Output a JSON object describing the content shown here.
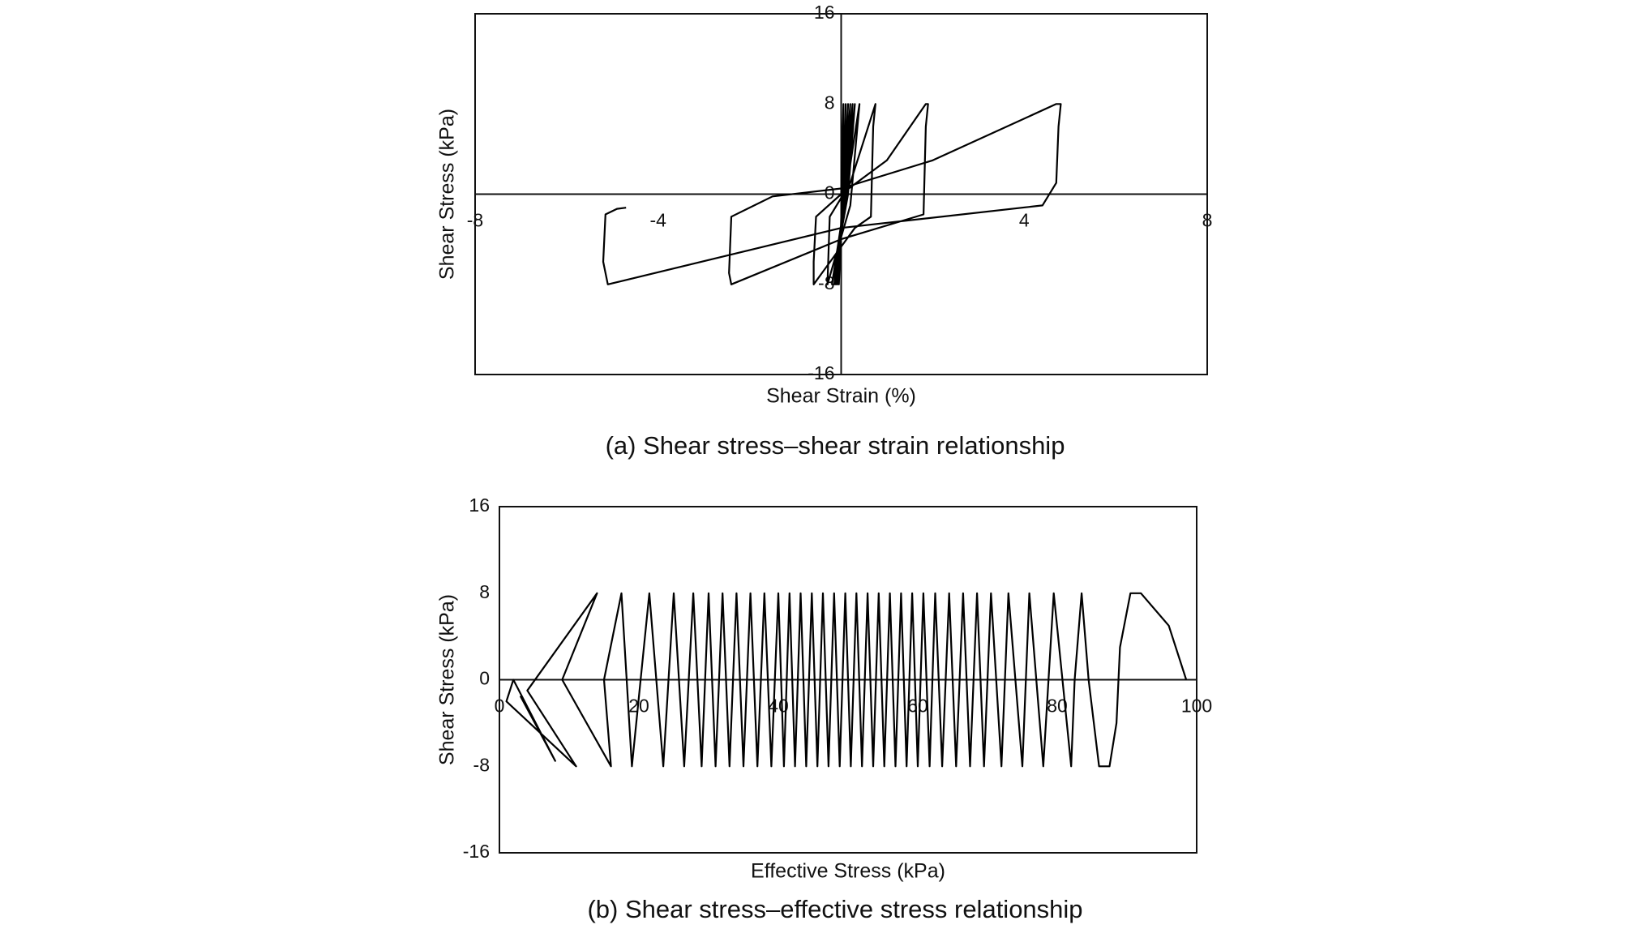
{
  "chart_data": [
    {
      "type": "line",
      "title": "(a) Shear stress–shear strain relationship",
      "x_label": "Shear Strain (%)",
      "y_label": "Shear Stress (kPa)",
      "xlim": [
        -8,
        8
      ],
      "ylim": [
        -16,
        16
      ],
      "xticks": [
        -8,
        -4,
        4,
        8
      ],
      "yticks": [
        -16,
        -8,
        0,
        8,
        16
      ],
      "y_axis_at": "zero",
      "color": "#000000",
      "x": [
        0,
        0.05,
        0.02,
        -0.05,
        0.1,
        0.05,
        -0.08,
        0.15,
        0.08,
        -0.1,
        0.2,
        0.1,
        -0.12,
        0.25,
        0.12,
        -0.15,
        0.3,
        0.15,
        -0.2,
        0.4,
        0.2,
        -0.3,
        -0.25,
        0.2,
        0.75,
        0.7,
        0.65,
        0.3,
        -0.6,
        -0.6,
        -0.55,
        0,
        1.0,
        1.85,
        1.9,
        1.85,
        1.8,
        0,
        -2.4,
        -2.45,
        -2.4,
        -1.5,
        0,
        2,
        4.7,
        4.8,
        4.75,
        4.7,
        4.4,
        0,
        -5.1,
        -5.2,
        -5.15,
        -4.9,
        -4.7
      ],
      "values": [
        0,
        8,
        0,
        -8,
        8,
        0,
        -8,
        8,
        0,
        -8,
        8,
        0,
        -8,
        8,
        0,
        -8,
        8,
        0,
        -8,
        8,
        -1,
        -8,
        -2,
        1,
        8,
        6,
        -2,
        -3,
        -8,
        -6,
        -2,
        0,
        3,
        8,
        8,
        6,
        -1.8,
        -4,
        -8,
        -7,
        -2,
        -0.2,
        0.5,
        3,
        8,
        8,
        6,
        1,
        -1,
        -3,
        -8,
        -6,
        -1.8,
        -1.3,
        -1.2
      ]
    },
    {
      "type": "line",
      "title": "(b) Shear stress–effective stress relationship",
      "x_label": "Effective Stress (kPa)",
      "y_label": "Shear Stress (kPa)",
      "xlim": [
        0,
        100
      ],
      "ylim": [
        -16,
        16
      ],
      "xticks": [
        0,
        20,
        40,
        60,
        80,
        100
      ],
      "yticks": [
        -16,
        -8,
        0,
        8,
        16
      ],
      "y_axis_at": "left",
      "color": "#000000",
      "x": [
        98.5,
        96,
        92,
        90.5,
        89,
        88.5,
        87.5,
        86,
        84.5,
        83.5,
        82.5,
        82,
        79.5,
        78,
        76,
        75,
        73,
        72,
        70.5,
        69.5,
        68.5,
        67.5,
        66.5,
        65.5,
        64.5,
        63.5,
        62.5,
        61.7,
        60.8,
        60,
        59.2,
        58.4,
        57.6,
        56.8,
        56,
        55.2,
        54.4,
        53.6,
        52.8,
        52,
        51.2,
        50.4,
        49.6,
        48.8,
        48,
        47.2,
        46.4,
        45.6,
        44.8,
        44,
        43.2,
        42.4,
        41.6,
        40.8,
        40,
        39,
        38,
        37,
        36,
        35,
        34,
        33,
        32,
        31,
        30,
        29,
        27.8,
        26.5,
        25,
        23.5,
        21.5,
        19,
        17.5,
        15,
        16,
        9,
        14,
        4,
        11,
        1,
        2,
        8,
        3
      ],
      "values": [
        0,
        5,
        8,
        8,
        3,
        -4,
        -8,
        -8,
        0,
        8,
        0,
        -8,
        8,
        -8,
        8,
        -8,
        8,
        -8,
        8,
        -8,
        8,
        -8,
        8,
        -8,
        8,
        -8,
        8,
        -8,
        8,
        -8,
        8,
        -8,
        8,
        -8,
        8,
        -8,
        8,
        -8,
        8,
        -8,
        8,
        -8,
        8,
        -8,
        8,
        -8,
        8,
        -8,
        8,
        -8,
        8,
        -8,
        8,
        -8,
        8,
        -8,
        8,
        -8,
        8,
        -8,
        8,
        -8,
        8,
        -8,
        8,
        -8,
        8,
        -8,
        8,
        -8,
        8,
        -8,
        8,
        0,
        -8,
        0,
        8,
        -1,
        -8,
        -2,
        0,
        -7.5,
        -1.5
      ]
    }
  ]
}
